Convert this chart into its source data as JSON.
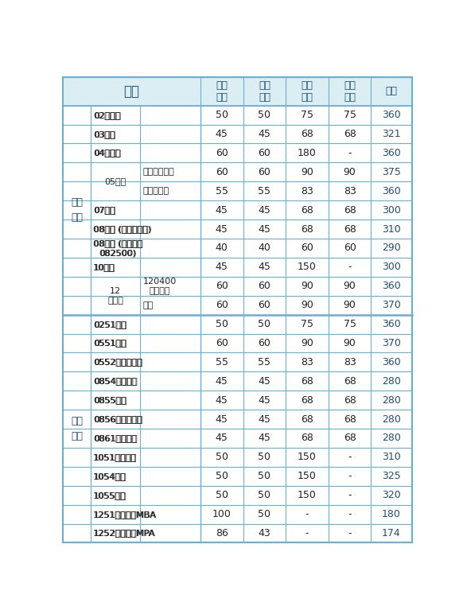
{
  "section1_label": "学术\n学位",
  "section2_label": "专业\n学位",
  "rows": [
    {
      "cat1": "02经济学",
      "cat2": "",
      "u1": "50",
      "u2": "50",
      "u3": "75",
      "u4": "75",
      "total": "360",
      "section": 1,
      "cat1_rows": 1,
      "cat2_rows": 1
    },
    {
      "cat1": "03法学",
      "cat2": "",
      "u1": "45",
      "u2": "45",
      "u3": "68",
      "u4": "68",
      "total": "321",
      "section": 1,
      "cat1_rows": 1,
      "cat2_rows": 1
    },
    {
      "cat1": "04教育学",
      "cat2": "",
      "u1": "60",
      "u2": "60",
      "u3": "180",
      "u4": "-",
      "total": "360",
      "section": 1,
      "cat1_rows": 1,
      "cat2_rows": 1
    },
    {
      "cat1": "05文学",
      "cat2": "外国语言文学",
      "u1": "60",
      "u2": "60",
      "u3": "90",
      "u4": "90",
      "total": "375",
      "section": 1,
      "cat1_rows": 2,
      "cat2_rows": 1
    },
    {
      "cat1": null,
      "cat2": "新闻传播学",
      "u1": "55",
      "u2": "55",
      "u3": "83",
      "u4": "83",
      "total": "360",
      "section": 1,
      "cat1_rows": 0,
      "cat2_rows": 1
    },
    {
      "cat1": "07理学",
      "cat2": "",
      "u1": "45",
      "u2": "45",
      "u3": "68",
      "u4": "68",
      "total": "300",
      "section": 1,
      "cat1_rows": 1,
      "cat2_rows": 1
    },
    {
      "cat1": "08工学 (非照顾专业)",
      "cat2": "",
      "u1": "45",
      "u2": "45",
      "u3": "68",
      "u4": "68",
      "total": "310",
      "section": 1,
      "cat1_rows": 1,
      "cat2_rows": 1
    },
    {
      "cat1": "08工学 (照顾专业\n082500)",
      "cat2": "",
      "u1": "40",
      "u2": "40",
      "u3": "60",
      "u4": "60",
      "total": "290",
      "section": 1,
      "cat1_rows": 1,
      "cat2_rows": 1
    },
    {
      "cat1": "10医学",
      "cat2": "",
      "u1": "45",
      "u2": "45",
      "u3": "150",
      "u4": "-",
      "total": "300",
      "section": 1,
      "cat1_rows": 1,
      "cat2_rows": 1
    },
    {
      "cat1": "12\n管理学",
      "cat2": "120400\n公共管理",
      "u1": "60",
      "u2": "60",
      "u3": "90",
      "u4": "90",
      "total": "360",
      "section": 1,
      "cat1_rows": 2,
      "cat2_rows": 1
    },
    {
      "cat1": null,
      "cat2": "其他",
      "u1": "60",
      "u2": "60",
      "u3": "90",
      "u4": "90",
      "total": "370",
      "section": 1,
      "cat1_rows": 0,
      "cat2_rows": 1
    },
    {
      "cat1": "0251金融",
      "cat2": "",
      "u1": "50",
      "u2": "50",
      "u3": "75",
      "u4": "75",
      "total": "360",
      "section": 2,
      "cat1_rows": 1,
      "cat2_rows": 1
    },
    {
      "cat1": "0551翻译",
      "cat2": "",
      "u1": "60",
      "u2": "60",
      "u3": "90",
      "u4": "90",
      "total": "370",
      "section": 2,
      "cat1_rows": 1,
      "cat2_rows": 1
    },
    {
      "cat1": "0552新闻与传播",
      "cat2": "",
      "u1": "55",
      "u2": "55",
      "u3": "83",
      "u4": "83",
      "total": "360",
      "section": 2,
      "cat1_rows": 1,
      "cat2_rows": 1
    },
    {
      "cat1": "0854电子信息",
      "cat2": "",
      "u1": "45",
      "u2": "45",
      "u3": "68",
      "u4": "68",
      "total": "280",
      "section": 2,
      "cat1_rows": 1,
      "cat2_rows": 1
    },
    {
      "cat1": "0855机械",
      "cat2": "",
      "u1": "45",
      "u2": "45",
      "u3": "68",
      "u4": "68",
      "total": "280",
      "section": 2,
      "cat1_rows": 1,
      "cat2_rows": 1
    },
    {
      "cat1": "0856材料与化工",
      "cat2": "",
      "u1": "45",
      "u2": "45",
      "u3": "68",
      "u4": "68",
      "total": "280",
      "section": 2,
      "cat1_rows": 1,
      "cat2_rows": 1
    },
    {
      "cat1": "0861交通运输",
      "cat2": "",
      "u1": "45",
      "u2": "45",
      "u3": "68",
      "u4": "68",
      "total": "280",
      "section": 2,
      "cat1_rows": 1,
      "cat2_rows": 1
    },
    {
      "cat1": "1051临床医学",
      "cat2": "",
      "u1": "50",
      "u2": "50",
      "u3": "150",
      "u4": "-",
      "total": "310",
      "section": 2,
      "cat1_rows": 1,
      "cat2_rows": 1
    },
    {
      "cat1": "1054护理",
      "cat2": "",
      "u1": "50",
      "u2": "50",
      "u3": "150",
      "u4": "-",
      "total": "325",
      "section": 2,
      "cat1_rows": 1,
      "cat2_rows": 1
    },
    {
      "cat1": "1055药学",
      "cat2": "",
      "u1": "50",
      "u2": "50",
      "u3": "150",
      "u4": "-",
      "total": "320",
      "section": 2,
      "cat1_rows": 1,
      "cat2_rows": 1
    },
    {
      "cat1": "1251工商管理MBA",
      "cat2": "",
      "u1": "100",
      "u2": "50",
      "u3": "-",
      "u4": "-",
      "total": "180",
      "section": 2,
      "cat1_rows": 1,
      "cat2_rows": 1
    },
    {
      "cat1": "1252公共管理MPA",
      "cat2": "",
      "u1": "86",
      "u2": "43",
      "u3": "-",
      "u4": "-",
      "total": "174",
      "section": 2,
      "cat1_rows": 1,
      "cat2_rows": 1
    }
  ],
  "header_bg": "#daeef3",
  "row_bg": "#ffffff",
  "border_color": "#6baed6",
  "text_color": "#222222",
  "header_text_color": "#1f4e79",
  "section_label_color": "#1f4e79",
  "total_color": "#1f4e79",
  "bg_color": "#ffffff",
  "col_section": 0.072,
  "col_cat1": 0.128,
  "col_cat2": 0.155,
  "col_data": 0.11,
  "col_total": 0.105
}
